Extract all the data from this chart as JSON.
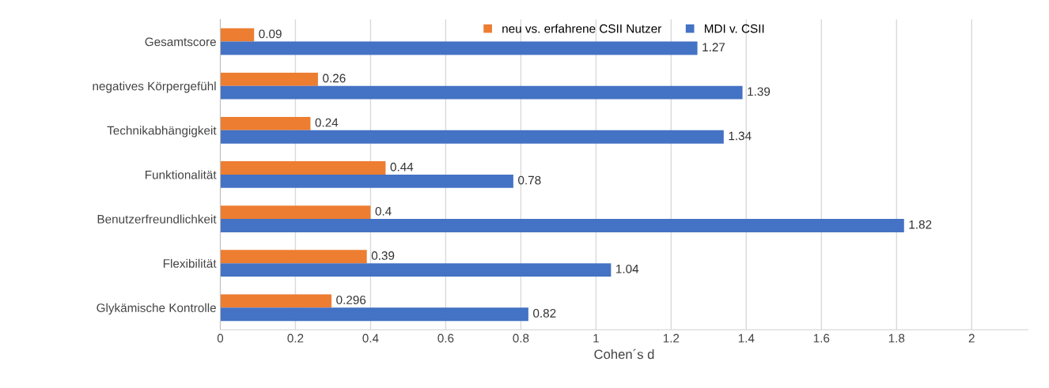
{
  "chart_data": {
    "type": "bar",
    "orientation": "horizontal",
    "xlabel": "Cohen´s d",
    "categories": [
      "Gesamtscore",
      "negatives Körpergefühl",
      "Technikabhängigkeit",
      "Funktionalität",
      "Benutzerfreundlichkeit",
      "Flexibilität",
      "Glykämische Kontrolle"
    ],
    "series": [
      {
        "name": "neu vs. erfahrene CSII Nutzer",
        "color": "#ed7d31",
        "values": [
          0.09,
          0.26,
          0.24,
          0.44,
          0.4,
          0.39,
          0.296
        ]
      },
      {
        "name": "MDI v. CSII",
        "color": "#4472c4",
        "values": [
          1.27,
          1.39,
          1.34,
          0.78,
          1.82,
          1.04,
          0.82
        ]
      }
    ],
    "xlim": [
      0,
      2.15
    ],
    "xticks": [
      0,
      0.2,
      0.4,
      0.6,
      0.8,
      1,
      1.2,
      1.4,
      1.6,
      1.8,
      2
    ],
    "grid": "x",
    "legend": "top",
    "data_labels": true
  }
}
